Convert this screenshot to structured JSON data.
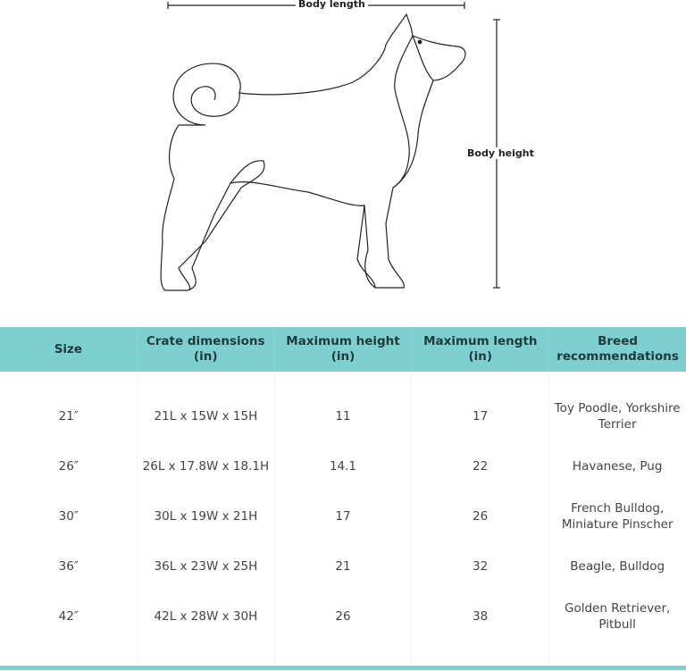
{
  "diagram": {
    "body_length_label": "Body length",
    "body_height_label": "Body height"
  },
  "colors": {
    "accent": "#7ecfcf"
  },
  "table": {
    "headers": [
      "Size",
      "Crate dimensions (in)",
      "Maximum height (in)",
      "Maximum length (in)",
      "Breed recommendations"
    ],
    "rows": [
      [
        "21″",
        "21L x 15W x 15H",
        "11",
        "17",
        "Toy Poodle, Yorkshire Terrier"
      ],
      [
        "26″",
        "26L x 17.8W x 18.1H",
        "14.1",
        "22",
        "Havanese, Pug"
      ],
      [
        "30″",
        "30L x 19W x 21H",
        "17",
        "26",
        "French Bulldog, Miniature Pinscher"
      ],
      [
        "36″",
        "36L x 23W x 25H",
        "21",
        "32",
        "Beagle, Bulldog"
      ],
      [
        "42″",
        "42L x 28W x 30H",
        "26",
        "38",
        "Golden Retriever, Pitbull"
      ]
    ]
  }
}
